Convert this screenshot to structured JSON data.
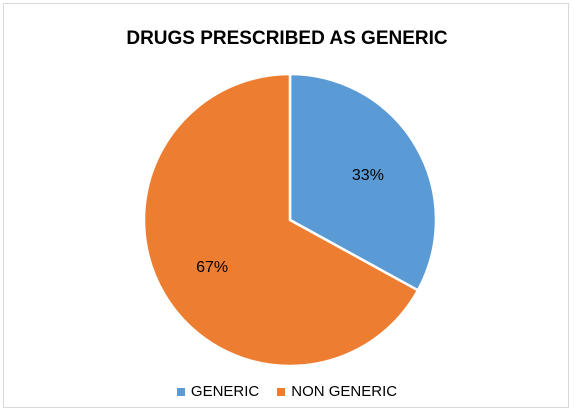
{
  "chart_data": {
    "type": "pie",
    "title": "DRUGS PRESCRIBED AS GENERIC",
    "slices": [
      {
        "name": "GENERIC",
        "value": 33,
        "label": "33%",
        "color": "#5b9bd5"
      },
      {
        "name": "NON GENERIC",
        "value": 67,
        "label": "67%",
        "color": "#ed7d31"
      }
    ],
    "legend_position": "bottom",
    "start_angle": "12 o'clock",
    "direction": "clockwise"
  }
}
